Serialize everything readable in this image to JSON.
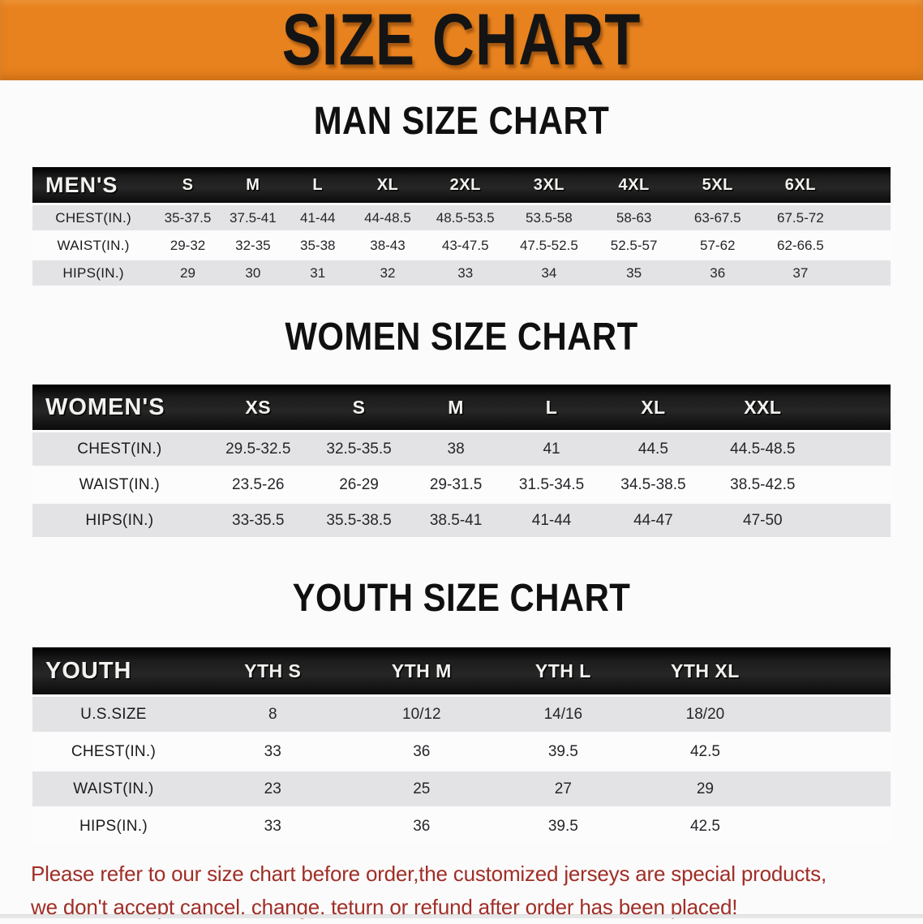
{
  "banner": {
    "title": "SIZE CHART",
    "background": "#E8821E",
    "title_color": "#141414"
  },
  "sections": {
    "men": {
      "heading": "MAN SIZE CHART"
    },
    "women": {
      "heading": "WOMEN SIZE CHART"
    },
    "youth": {
      "heading": "YOUTH SIZE CHART"
    }
  },
  "tables": {
    "men": {
      "label": "MEN'S",
      "sizes": [
        "S",
        "M",
        "L",
        "XL",
        "2XL",
        "3XL",
        "4XL",
        "5XL",
        "6XL"
      ],
      "rows": [
        {
          "label": "CHEST(IN.)",
          "values": [
            "35-37.5",
            "37.5-41",
            "41-44",
            "44-48.5",
            "48.5-53.5",
            "53.5-58",
            "58-63",
            "63-67.5",
            "67.5-72"
          ]
        },
        {
          "label": "WAIST(IN.)",
          "values": [
            "29-32",
            "32-35",
            "35-38",
            "38-43",
            "43-47.5",
            "47.5-52.5",
            "52.5-57",
            "57-62",
            "62-66.5"
          ]
        },
        {
          "label": "HIPS(IN.)",
          "values": [
            "29",
            "30",
            "31",
            "32",
            "33",
            "34",
            "35",
            "36",
            "37"
          ]
        }
      ]
    },
    "women": {
      "label": "WOMEN'S",
      "sizes": [
        "XS",
        "S",
        "M",
        "L",
        "XL",
        "XXL"
      ],
      "rows": [
        {
          "label": "CHEST(IN.)",
          "values": [
            "29.5-32.5",
            "32.5-35.5",
            "38",
            "41",
            "44.5",
            "44.5-48.5"
          ]
        },
        {
          "label": "WAIST(IN.)",
          "values": [
            "23.5-26",
            "26-29",
            "29-31.5",
            "31.5-34.5",
            "34.5-38.5",
            "38.5-42.5"
          ]
        },
        {
          "label": "HIPS(IN.)",
          "values": [
            "33-35.5",
            "35.5-38.5",
            "38.5-41",
            "41-44",
            "44-47",
            "47-50"
          ]
        }
      ]
    },
    "youth": {
      "label": "YOUTH",
      "sizes": [
        "YTH S",
        "YTH M",
        "YTH L",
        "YTH XL"
      ],
      "rows": [
        {
          "label": "U.S.SIZE",
          "values": [
            "8",
            "10/12",
            "14/16",
            "18/20"
          ]
        },
        {
          "label": "CHEST(IN.)",
          "values": [
            "33",
            "36",
            "39.5",
            "42.5"
          ]
        },
        {
          "label": "WAIST(IN.)",
          "values": [
            "23",
            "25",
            "27",
            "29"
          ]
        },
        {
          "label": "HIPS(IN.)",
          "values": [
            "33",
            "36",
            "39.5",
            "42.5"
          ]
        }
      ]
    }
  },
  "notice": {
    "line1": "Please refer to our size chart before order,the customized jerseys are special products,",
    "line2": "we don't accept cancel, change, teturn or refund after order has been placed!",
    "color": "#A02E27"
  },
  "colors": {
    "header_band": "#1A1A1A",
    "row_gray": "#E3E3E6",
    "row_white": "#FCFCFD"
  }
}
